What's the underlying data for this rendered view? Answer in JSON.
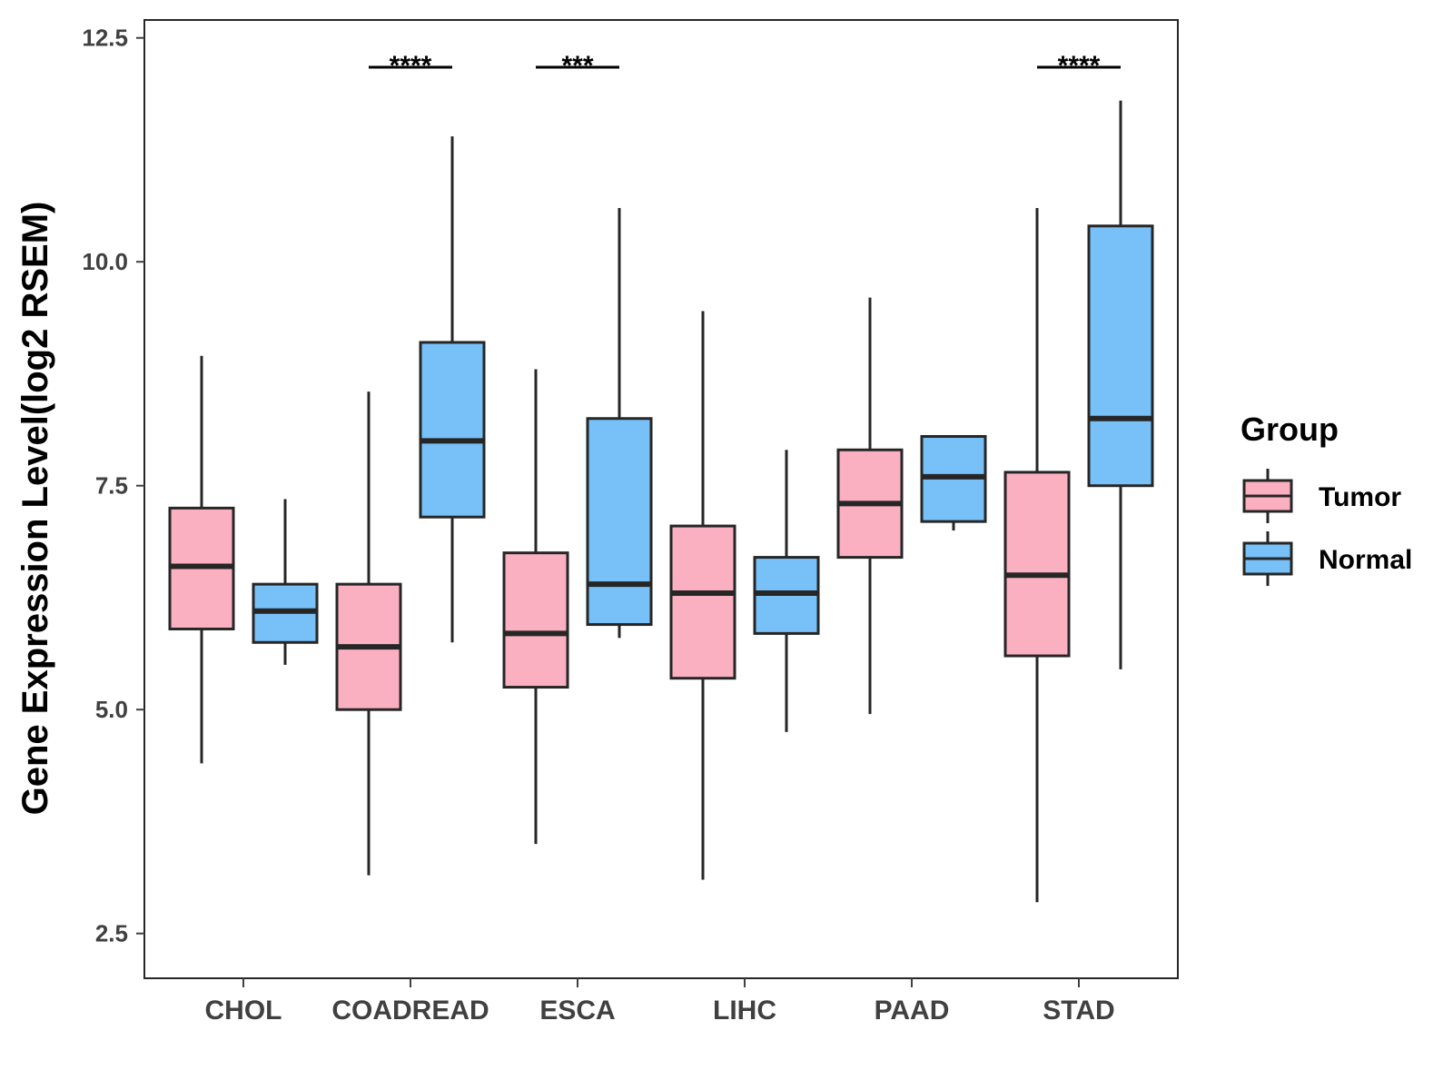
{
  "chart_data": {
    "type": "boxplot",
    "title": "",
    "xlabel": "",
    "ylabel": "Gene Expression Level(log2 RSEM)",
    "ylim": [
      2.0,
      12.7
    ],
    "yticks": [
      2.5,
      5.0,
      7.5,
      10.0,
      12.5
    ],
    "ytick_labels": [
      "2.5",
      "5.0",
      "7.5",
      "10.0",
      "12.5"
    ],
    "categories": [
      "CHOL",
      "COADREAD",
      "ESCA",
      "LIHC",
      "PAAD",
      "STAD"
    ],
    "legend": {
      "title": "Group",
      "position": "right",
      "entries": [
        {
          "name": "Tumor",
          "color": "#FBB0C2"
        },
        {
          "name": "Normal",
          "color": "#77C1F8"
        }
      ]
    },
    "colors": {
      "tumor": "#FBB0C2",
      "normal": "#77C1F8",
      "outline": "#262626",
      "axis": "#404040"
    },
    "series": [
      {
        "name": "Tumor",
        "boxes": [
          {
            "category": "CHOL",
            "min": 4.4,
            "q1": 5.9,
            "median": 6.6,
            "q3": 7.25,
            "max": 8.95
          },
          {
            "category": "COADREAD",
            "min": 3.15,
            "q1": 5.0,
            "median": 5.7,
            "q3": 6.4,
            "max": 8.55
          },
          {
            "category": "ESCA",
            "min": 3.5,
            "q1": 5.25,
            "median": 5.85,
            "q3": 6.75,
            "max": 8.8
          },
          {
            "category": "LIHC",
            "min": 3.1,
            "q1": 5.35,
            "median": 6.3,
            "q3": 7.05,
            "max": 9.45
          },
          {
            "category": "PAAD",
            "min": 4.95,
            "q1": 6.7,
            "median": 7.3,
            "q3": 7.9,
            "max": 9.6
          },
          {
            "category": "STAD",
            "min": 2.85,
            "q1": 5.6,
            "median": 6.5,
            "q3": 7.65,
            "max": 10.6
          }
        ]
      },
      {
        "name": "Normal",
        "boxes": [
          {
            "category": "CHOL",
            "min": 5.5,
            "q1": 5.75,
            "median": 6.1,
            "q3": 6.4,
            "max": 7.35
          },
          {
            "category": "COADREAD",
            "min": 5.75,
            "q1": 7.15,
            "median": 8.0,
            "q3": 9.1,
            "max": 11.4
          },
          {
            "category": "ESCA",
            "min": 5.8,
            "q1": 5.95,
            "median": 6.4,
            "q3": 8.25,
            "max": 10.6
          },
          {
            "category": "LIHC",
            "min": 4.75,
            "q1": 5.85,
            "median": 6.3,
            "q3": 6.7,
            "max": 7.9
          },
          {
            "category": "PAAD",
            "min": 7.0,
            "q1": 7.1,
            "median": 7.6,
            "q3": 8.05,
            "max": 8.05
          },
          {
            "category": "STAD",
            "min": 5.45,
            "q1": 7.5,
            "median": 8.25,
            "q3": 10.4,
            "max": 11.8
          }
        ]
      }
    ],
    "significance": [
      {
        "category": "COADREAD",
        "label": "****"
      },
      {
        "category": "ESCA",
        "label": "***"
      },
      {
        "category": "STAD",
        "label": "****"
      }
    ]
  }
}
